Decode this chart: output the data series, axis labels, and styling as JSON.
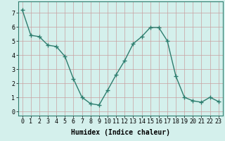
{
  "x": [
    0,
    1,
    2,
    3,
    4,
    5,
    6,
    7,
    8,
    9,
    10,
    11,
    12,
    13,
    14,
    15,
    16,
    17,
    18,
    19,
    20,
    21,
    22,
    23
  ],
  "y": [
    7.2,
    5.4,
    5.3,
    4.7,
    4.6,
    3.9,
    2.3,
    1.0,
    0.55,
    0.45,
    1.5,
    2.6,
    3.6,
    4.8,
    5.3,
    5.95,
    5.95,
    5.0,
    2.5,
    1.0,
    0.75,
    0.65,
    1.0,
    0.7
  ],
  "title": "",
  "xlabel": "Humidex (Indice chaleur)",
  "ylabel": "",
  "xlim": [
    -0.5,
    23.5
  ],
  "ylim": [
    -0.3,
    7.8
  ],
  "yticks": [
    0,
    1,
    2,
    3,
    4,
    5,
    6,
    7
  ],
  "xticks": [
    0,
    1,
    2,
    3,
    4,
    5,
    6,
    7,
    8,
    9,
    10,
    11,
    12,
    13,
    14,
    15,
    16,
    17,
    18,
    19,
    20,
    21,
    22,
    23
  ],
  "line_color": "#2d7d6e",
  "marker": "+",
  "marker_size": 4,
  "line_width": 1.0,
  "bg_color": "#d4f0ec",
  "grid_color": "#c8a0a0",
  "xlabel_fontsize": 7,
  "tick_fontsize": 6
}
